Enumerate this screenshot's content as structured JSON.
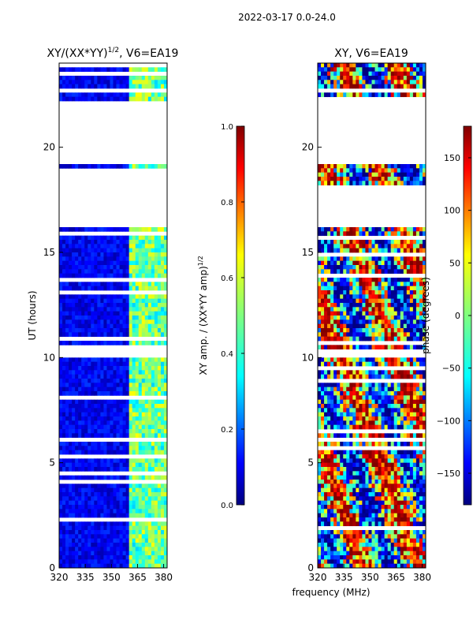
{
  "suptitle": "2022-03-17 0.0-24.0",
  "shared_xlabel": "frequency (MHz)",
  "chart_data": [
    {
      "type": "heatmap",
      "title": "XY/(XX*YY)1/2, V6=EA19",
      "title_main": "XY/(XX*YY)",
      "title_sup": "1/2",
      "title_rest": ", V6=EA19",
      "xlabel": "frequency (MHz)",
      "ylabel": "UT (hours)",
      "xlim": [
        320,
        382
      ],
      "ylim": [
        0,
        24
      ],
      "xticks": [
        320,
        335,
        350,
        365,
        380
      ],
      "yticks": [
        0,
        5,
        10,
        15,
        20
      ],
      "colormap": "jet",
      "colorbar": {
        "label": "XY amp. / (XX*YY amp)1/2",
        "label_main": "XY amp. / (XX*YY amp)",
        "label_sup": "1/2",
        "min": 0.0,
        "max": 1.0,
        "ticks": [
          "0.0",
          "0.2",
          "0.4",
          "0.6",
          "0.8",
          "1.0"
        ]
      },
      "data_gaps_hours": [
        [
          18.2,
          18.9
        ],
        [
          16.2,
          18.2
        ],
        [
          19.2,
          22.2
        ],
        [
          10.1,
          10.4
        ],
        [
          6.0,
          6.2
        ],
        [
          23.4,
          23.6
        ],
        [
          22.6,
          22.8
        ]
      ],
      "description_values": {
        "low_band_MHz": [
          320,
          360
        ],
        "low_band_amp": 0.1,
        "high_band_MHz": [
          360,
          382
        ],
        "high_band_amp": 0.6
      }
    },
    {
      "type": "heatmap",
      "title": "XY, V6=EA19",
      "xlabel": "frequency (MHz)",
      "ylabel": "",
      "xlim": [
        320,
        382
      ],
      "ylim": [
        0,
        24
      ],
      "xticks": [
        320,
        335,
        350,
        365,
        380
      ],
      "yticks": [
        0,
        5,
        10,
        15,
        20
      ],
      "colormap": "jet",
      "colorbar": {
        "label": "phase (degrees)",
        "min": -180,
        "max": 180,
        "ticks": [
          "−150",
          "−100",
          "−50",
          "0",
          "50",
          "100",
          "150"
        ]
      },
      "data_gaps_hours": [
        [
          16.2,
          18.2
        ],
        [
          19.2,
          22.2
        ],
        [
          10.1,
          10.4
        ],
        [
          6.0,
          6.2
        ],
        [
          22.6,
          22.8
        ]
      ]
    }
  ],
  "colors": {
    "jet": [
      "#00007f",
      "#0000ff",
      "#007fff",
      "#00ffff",
      "#7fff7f",
      "#ffff00",
      "#ff7f00",
      "#ff0000",
      "#7f0000"
    ]
  }
}
